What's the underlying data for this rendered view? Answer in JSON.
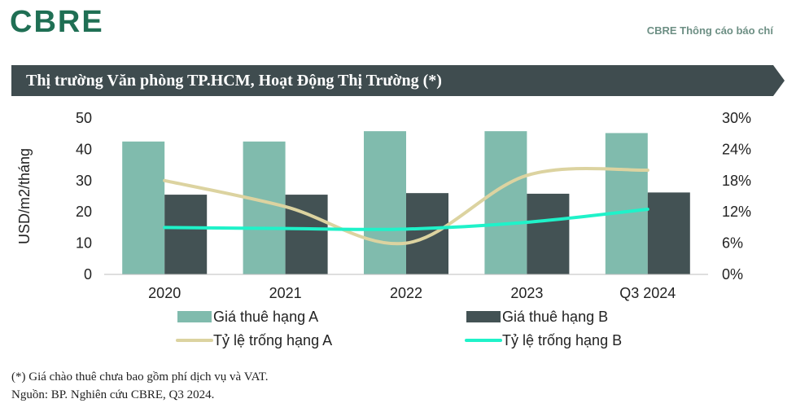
{
  "header": {
    "logo_text": "CBRE",
    "press_label": "CBRE Thông cáo báo chí",
    "title": "Thị trường Văn phòng TP.HCM, Hoạt Động Thị Trường (*)"
  },
  "colors": {
    "brand": "#1f6f54",
    "banner": "#3f4c4f",
    "bar_a": "#80bbad",
    "bar_b": "#435254",
    "line_a": "#dcd3a0",
    "line_b": "#1ff2c9"
  },
  "chart_data": {
    "type": "bar",
    "categories": [
      "2020",
      "2021",
      "2022",
      "2023",
      "Q3 2024"
    ],
    "series": [
      {
        "name": "Giá thuê hạng A",
        "type": "bar",
        "axis": "left",
        "values": [
          42.5,
          42.5,
          45.8,
          45.8,
          45.2
        ]
      },
      {
        "name": "Giá thuê hạng B",
        "type": "bar",
        "axis": "left",
        "values": [
          25.5,
          25.5,
          26.0,
          25.8,
          26.2
        ]
      },
      {
        "name": "Tỷ lệ trống hạng A",
        "type": "line",
        "axis": "right",
        "values": [
          18.0,
          13.0,
          6.0,
          19.0,
          20.0
        ]
      },
      {
        "name": "Tỷ lệ trống hạng B",
        "type": "line",
        "axis": "right",
        "values": [
          9.0,
          8.8,
          8.7,
          10.0,
          12.5
        ]
      }
    ],
    "ylabel": "USD/m2/tháng",
    "ylim": [
      0,
      50
    ],
    "yticks": [
      "0",
      "10",
      "20",
      "30",
      "40",
      "50"
    ],
    "y2lim": [
      0,
      30
    ],
    "y2ticks": [
      "0%",
      "6%",
      "12%",
      "18%",
      "24%",
      "30%"
    ],
    "legend_position": "bottom"
  },
  "notes": {
    "footnote": "(*) Giá chào thuê chưa bao gồm phí dịch vụ và VAT.",
    "source": "Nguồn: BP. Nghiên cứu CBRE, Q3 2024."
  }
}
